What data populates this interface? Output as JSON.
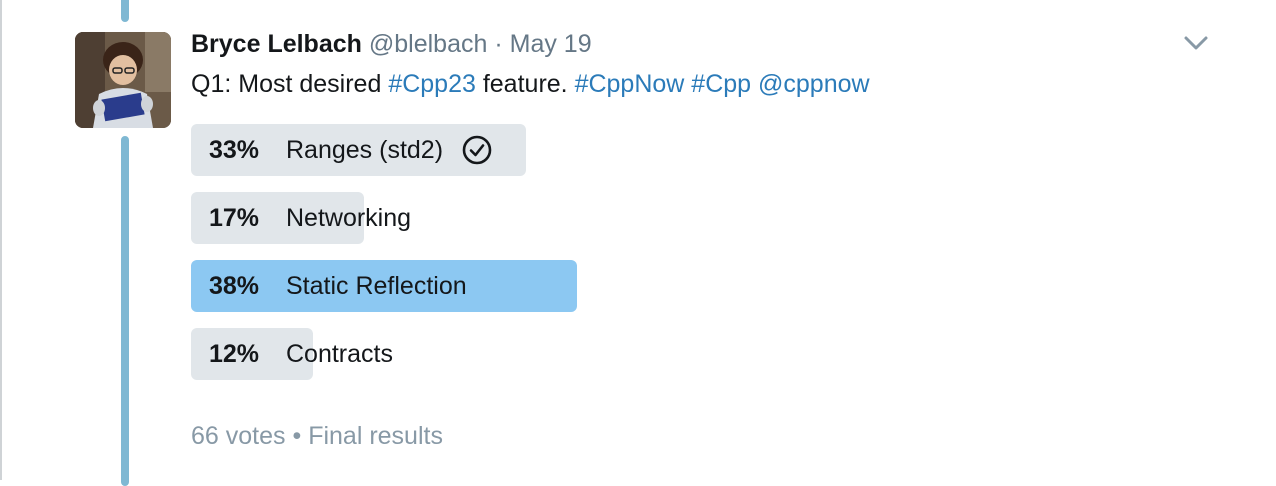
{
  "tweet": {
    "author_name": "Bryce Lelbach",
    "author_handle": "@blelbach",
    "separator": "·",
    "date": "May 19",
    "text_prefix": "Q1: Most desired ",
    "hashtag_1": "#Cpp23",
    "text_middle": " feature. ",
    "hashtag_2": "#CppNow",
    "hashtag_3": "#Cpp",
    "mention": "@cppnow",
    "avatar_icon": "profile-photo",
    "menu_icon": "chevron-down-icon"
  },
  "poll": {
    "options": [
      {
        "percent": "33%",
        "value": 33,
        "label": "Ranges (std2)",
        "voted": true,
        "winner": false
      },
      {
        "percent": "17%",
        "value": 17,
        "label": "Networking",
        "voted": false,
        "winner": false
      },
      {
        "percent": "38%",
        "value": 38,
        "label": "Static Reflection",
        "voted": false,
        "winner": true
      },
      {
        "percent": "12%",
        "value": 12,
        "label": "Contracts",
        "voted": false,
        "winner": false
      }
    ],
    "votes": "66 votes",
    "footer_separator": "•",
    "status": "Final results",
    "voted_icon": "check-circle-icon"
  },
  "colors": {
    "thread_line": "#7fb8d3",
    "link": "#2b7bb9",
    "bar_default": "#e1e6ea",
    "bar_winner": "#8cc8f2",
    "secondary_text": "#657786",
    "footer_text": "#8899a6"
  }
}
